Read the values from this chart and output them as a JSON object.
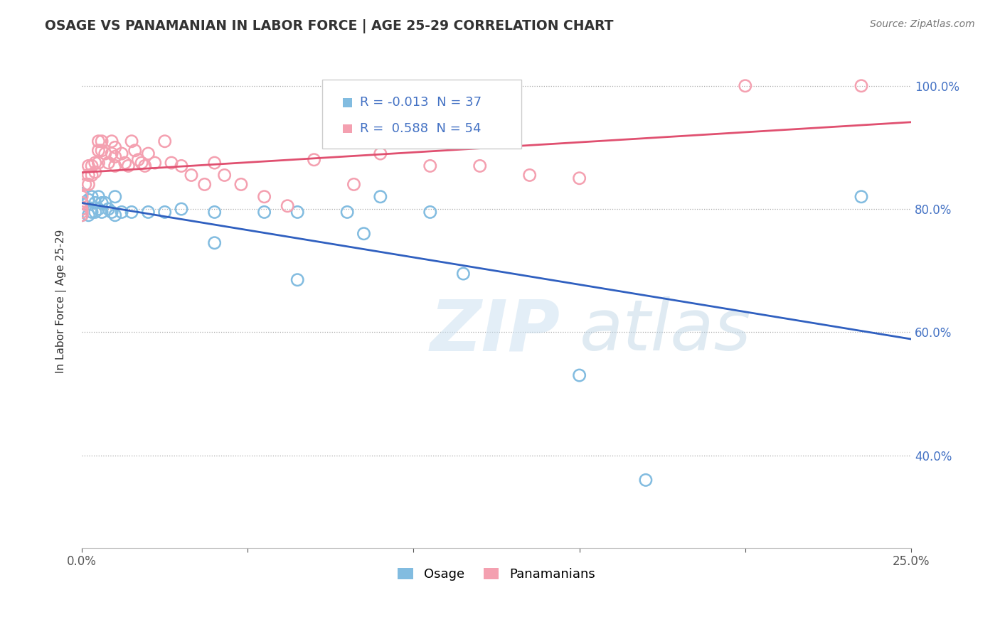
{
  "title": "OSAGE VS PANAMANIAN IN LABOR FORCE | AGE 25-29 CORRELATION CHART",
  "source_text": "Source: ZipAtlas.com",
  "ylabel": "In Labor Force | Age 25-29",
  "xlim": [
    0.0,
    0.25
  ],
  "ylim": [
    0.25,
    1.05
  ],
  "x_ticks": [
    0.0,
    0.05,
    0.1,
    0.15,
    0.2,
    0.25
  ],
  "x_tick_labels": [
    "0.0%",
    "",
    "",
    "",
    "",
    "25.0%"
  ],
  "y_ticks": [
    0.4,
    0.6,
    0.8,
    1.0
  ],
  "y_tick_labels": [
    "40.0%",
    "60.0%",
    "80.0%",
    "100.0%"
  ],
  "legend_osage_label": "Osage",
  "legend_pana_label": "Panamanians",
  "osage_color": "#82bce0",
  "pana_color": "#f4a0b0",
  "osage_line_color": "#3060c0",
  "pana_line_color": "#e05070",
  "R_osage": -0.013,
  "N_osage": 37,
  "R_pana": 0.588,
  "N_pana": 54,
  "watermark_zip": "ZIP",
  "watermark_atlas": "atlas",
  "osage_x": [
    0.0,
    0.0,
    0.0,
    0.0,
    0.002,
    0.002,
    0.003,
    0.003,
    0.004,
    0.004,
    0.005,
    0.005,
    0.006,
    0.006,
    0.007,
    0.008,
    0.009,
    0.01,
    0.01,
    0.012,
    0.015,
    0.02,
    0.025,
    0.03,
    0.04,
    0.04,
    0.055,
    0.065,
    0.065,
    0.08,
    0.085,
    0.09,
    0.105,
    0.115,
    0.15,
    0.17,
    0.235
  ],
  "osage_y": [
    0.81,
    0.79,
    0.825,
    0.8,
    0.815,
    0.79,
    0.82,
    0.795,
    0.81,
    0.795,
    0.82,
    0.8,
    0.81,
    0.795,
    0.81,
    0.8,
    0.795,
    0.82,
    0.79,
    0.795,
    0.795,
    0.795,
    0.795,
    0.8,
    0.795,
    0.745,
    0.795,
    0.795,
    0.685,
    0.795,
    0.76,
    0.82,
    0.795,
    0.695,
    0.53,
    0.36,
    0.82
  ],
  "pana_x": [
    0.0,
    0.0,
    0.0,
    0.0,
    0.0,
    0.001,
    0.002,
    0.002,
    0.002,
    0.003,
    0.003,
    0.004,
    0.004,
    0.005,
    0.005,
    0.005,
    0.006,
    0.006,
    0.007,
    0.008,
    0.009,
    0.009,
    0.01,
    0.01,
    0.01,
    0.012,
    0.013,
    0.014,
    0.015,
    0.016,
    0.017,
    0.018,
    0.019,
    0.02,
    0.022,
    0.025,
    0.027,
    0.03,
    0.033,
    0.037,
    0.04,
    0.043,
    0.048,
    0.055,
    0.062,
    0.07,
    0.082,
    0.09,
    0.105,
    0.12,
    0.135,
    0.15,
    0.2,
    0.235
  ],
  "pana_y": [
    0.82,
    0.8,
    0.81,
    0.795,
    0.79,
    0.84,
    0.87,
    0.855,
    0.84,
    0.87,
    0.855,
    0.875,
    0.86,
    0.91,
    0.895,
    0.875,
    0.91,
    0.895,
    0.89,
    0.875,
    0.91,
    0.89,
    0.9,
    0.885,
    0.87,
    0.89,
    0.875,
    0.87,
    0.91,
    0.895,
    0.88,
    0.875,
    0.87,
    0.89,
    0.875,
    0.91,
    0.875,
    0.87,
    0.855,
    0.84,
    0.875,
    0.855,
    0.84,
    0.82,
    0.805,
    0.88,
    0.84,
    0.89,
    0.87,
    0.87,
    0.855,
    0.85,
    1.0,
    1.0
  ]
}
